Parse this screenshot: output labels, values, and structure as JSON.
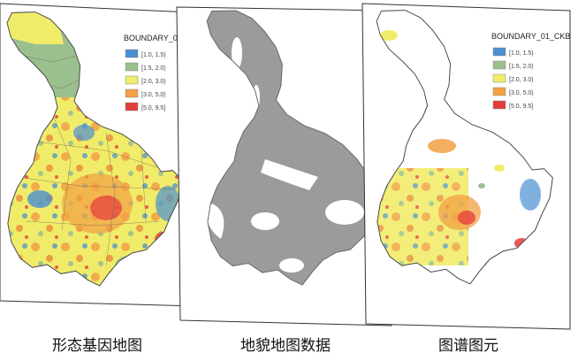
{
  "panels": [
    {
      "id": "morph",
      "caption": "形态基因地图",
      "legend": {
        "title": "BOUNDARY_0",
        "items": [
          {
            "label": "[1.0, 1.5)",
            "color": "#4a90d0"
          },
          {
            "label": "[1.5, 2.0)",
            "color": "#9bc08f"
          },
          {
            "label": "[2.0, 3.0)",
            "color": "#f0ec6a"
          },
          {
            "label": "[3.0, 5.0)",
            "color": "#f2a044"
          },
          {
            "label": "[5.0, 9.5]",
            "color": "#e43c3c"
          }
        ]
      }
    },
    {
      "id": "terrain",
      "caption": "地貌地图数据"
    },
    {
      "id": "tupu",
      "caption": "图谱图元",
      "legend": {
        "title": "BOUNDARY_01_CKB",
        "items": [
          {
            "label": "[1.0, 1.5)",
            "color": "#4a90d0"
          },
          {
            "label": "[1.5, 2.0)",
            "color": "#9bc08f"
          },
          {
            "label": "[2.0, 3.0)",
            "color": "#f0ec6a"
          },
          {
            "label": "[3.0, 5.0)",
            "color": "#f2a044"
          },
          {
            "label": "[5.0, 9.5]",
            "color": "#e43c3c"
          }
        ]
      }
    }
  ],
  "colors": {
    "terrain_fill": "#9b9b9b",
    "terrain_light": "#ffffff",
    "border": "#555555"
  }
}
